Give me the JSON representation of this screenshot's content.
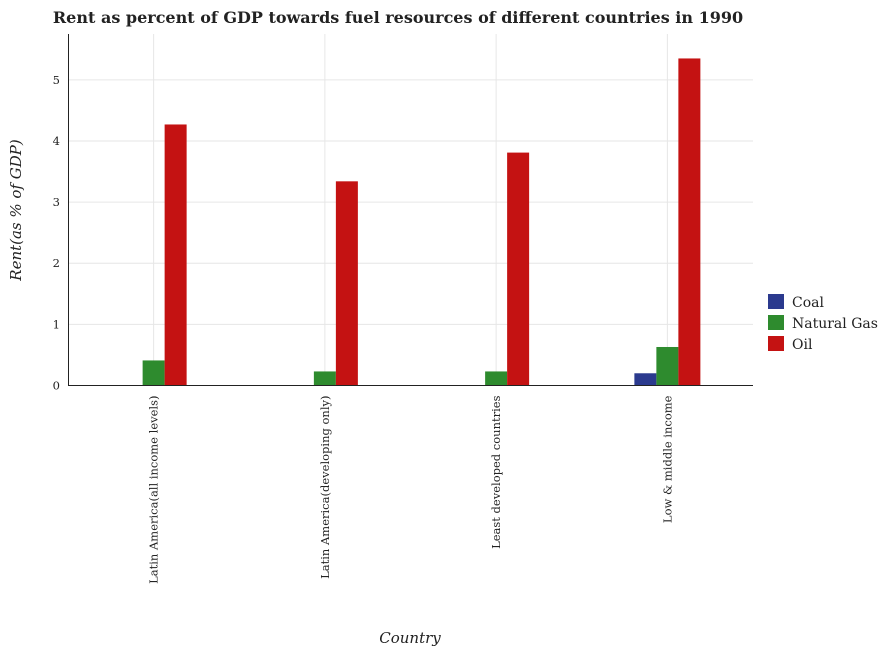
{
  "chart_data": {
    "type": "bar",
    "title": "Rent as percent of GDP towards fuel resources of different countries in 1990",
    "xlabel": "Country",
    "ylabel": "Rent(as % of GDP)",
    "categories": [
      "Latin America(all income levels)",
      "Latin America(developing only)",
      "Least developed countries",
      "Low & middle income"
    ],
    "series": [
      {
        "name": "Coal",
        "color": "#2b3a8e",
        "values": [
          0.005,
          0.007,
          0.001,
          0.2
        ]
      },
      {
        "name": "Natural Gas",
        "color": "#2e8b2e",
        "values": [
          0.41,
          0.23,
          0.23,
          0.63
        ]
      },
      {
        "name": "Oil",
        "color": "#c41212",
        "values": [
          4.27,
          3.34,
          3.81,
          5.35
        ]
      }
    ],
    "ylim": [
      0,
      5.75
    ],
    "yticks": [
      0,
      1,
      2,
      3,
      4,
      5
    ],
    "grid": true,
    "legend_position": "right"
  }
}
